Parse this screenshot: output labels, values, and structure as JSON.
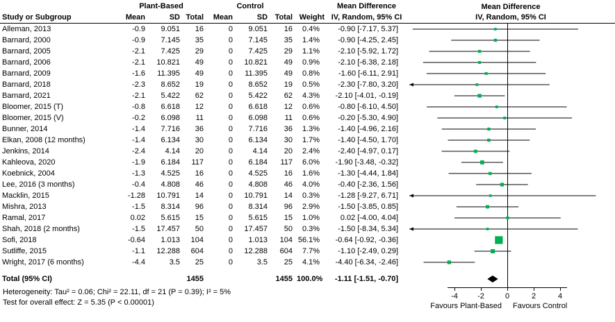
{
  "header": {
    "group1": "Plant-Based",
    "group2": "Control",
    "md": "Mean Difference",
    "study": "Study or Subgroup",
    "mean": "Mean",
    "sd": "SD",
    "total": "Total",
    "weight": "Weight",
    "ci": "IV, Random, 95% CI"
  },
  "footer": {
    "heterogeneity": "Heterogeneity: Tau² = 0.06; Chi² = 22.11, df = 21 (P = 0.39); I² = 5%",
    "overall": "Test for overall effect: Z = 5.35 (P < 0.00001)"
  },
  "chart_data": {
    "type": "forest",
    "effect_measure": "Mean Difference",
    "model": "IV, Random, 95% CI",
    "axis_ticks": [
      -4,
      -2,
      0,
      2,
      4
    ],
    "xlim": [
      -7.5,
      8
    ],
    "favours_left": "Favours Plant-Based",
    "favours_right": "Favours Control",
    "marker_color": "#00B050",
    "diamond_color": "#000000",
    "studies": [
      {
        "name": "Alleman, 2013",
        "mean": "-0.9",
        "sd": "9.051",
        "total": "16",
        "c_mean": "0",
        "c_sd": "9.051",
        "c_total": "16",
        "weight": "0.4%",
        "ci_text": "-0.90 [-7.17, 5.37]",
        "est": -0.9,
        "lo": -7.17,
        "hi": 5.37
      },
      {
        "name": "Barnard, 2000",
        "mean": "-0.9",
        "sd": "7.145",
        "total": "35",
        "c_mean": "0",
        "c_sd": "7.145",
        "c_total": "35",
        "weight": "1.4%",
        "ci_text": "-0.90 [-4.25, 2.45]",
        "est": -0.9,
        "lo": -4.25,
        "hi": 2.45
      },
      {
        "name": "Barnard, 2005",
        "mean": "-2.1",
        "sd": "7.425",
        "total": "29",
        "c_mean": "0",
        "c_sd": "7.425",
        "c_total": "29",
        "weight": "1.1%",
        "ci_text": "-2.10 [-5.92, 1.72]",
        "est": -2.1,
        "lo": -5.92,
        "hi": 1.72
      },
      {
        "name": "Barnard, 2006",
        "mean": "-2.1",
        "sd": "10.821",
        "total": "49",
        "c_mean": "0",
        "c_sd": "10.821",
        "c_total": "49",
        "weight": "0.9%",
        "ci_text": "-2.10 [-6.38, 2.18]",
        "est": -2.1,
        "lo": -6.38,
        "hi": 2.18
      },
      {
        "name": "Barnard, 2009",
        "mean": "-1.6",
        "sd": "11.395",
        "total": "49",
        "c_mean": "0",
        "c_sd": "11.395",
        "c_total": "49",
        "weight": "0.8%",
        "ci_text": "-1.60 [-6.11, 2.91]",
        "est": -1.6,
        "lo": -6.11,
        "hi": 2.91
      },
      {
        "name": "Barnard, 2018",
        "mean": "-2.3",
        "sd": "8.652",
        "total": "19",
        "c_mean": "0",
        "c_sd": "8.652",
        "c_total": "19",
        "weight": "0.5%",
        "ci_text": "-2.30 [-7.80, 3.20]",
        "est": -2.3,
        "lo": -7.8,
        "hi": 3.2
      },
      {
        "name": "Barnard, 2021",
        "mean": "-2.1",
        "sd": "5.422",
        "total": "62",
        "c_mean": "0",
        "c_sd": "5.422",
        "c_total": "62",
        "weight": "4.3%",
        "ci_text": "-2.10 [-4.01, -0.19]",
        "est": -2.1,
        "lo": -4.01,
        "hi": -0.19
      },
      {
        "name": "Bloomer, 2015 (T)",
        "mean": "-0.8",
        "sd": "6.618",
        "total": "12",
        "c_mean": "0",
        "c_sd": "6.618",
        "c_total": "12",
        "weight": "0.6%",
        "ci_text": "-0.80 [-6.10, 4.50]",
        "est": -0.8,
        "lo": -6.1,
        "hi": 4.5
      },
      {
        "name": "Bloomer, 2015 (V)",
        "mean": "-0.2",
        "sd": "6.098",
        "total": "11",
        "c_mean": "0",
        "c_sd": "6.098",
        "c_total": "11",
        "weight": "0.6%",
        "ci_text": "-0.20 [-5.30, 4.90]",
        "est": -0.2,
        "lo": -5.3,
        "hi": 4.9
      },
      {
        "name": "Bunner, 2014",
        "mean": "-1.4",
        "sd": "7.716",
        "total": "36",
        "c_mean": "0",
        "c_sd": "7.716",
        "c_total": "36",
        "weight": "1.3%",
        "ci_text": "-1.40 [-4.96, 2.16]",
        "est": -1.4,
        "lo": -4.96,
        "hi": 2.16
      },
      {
        "name": "Elkan, 2008 (12 months)",
        "mean": "-1.4",
        "sd": "6.134",
        "total": "30",
        "c_mean": "0",
        "c_sd": "6.134",
        "c_total": "30",
        "weight": "1.7%",
        "ci_text": "-1.40 [-4.50, 1.70]",
        "est": -1.4,
        "lo": -4.5,
        "hi": 1.7
      },
      {
        "name": "Jenkins, 2014",
        "mean": "-2.4",
        "sd": "4.14",
        "total": "20",
        "c_mean": "0",
        "c_sd": "4.14",
        "c_total": "20",
        "weight": "2.4%",
        "ci_text": "-2.40 [-4.97, 0.17]",
        "est": -2.4,
        "lo": -4.97,
        "hi": 0.17
      },
      {
        "name": "Kahleova, 2020",
        "mean": "-1.9",
        "sd": "6.184",
        "total": "117",
        "c_mean": "0",
        "c_sd": "6.184",
        "c_total": "117",
        "weight": "6.0%",
        "ci_text": "-1.90 [-3.48, -0.32]",
        "est": -1.9,
        "lo": -3.48,
        "hi": -0.32
      },
      {
        "name": "Koebnick, 2004",
        "mean": "-1.3",
        "sd": "4.525",
        "total": "16",
        "c_mean": "0",
        "c_sd": "4.525",
        "c_total": "16",
        "weight": "1.6%",
        "ci_text": "-1.30 [-4.44, 1.84]",
        "est": -1.3,
        "lo": -4.44,
        "hi": 1.84
      },
      {
        "name": "Lee, 2016 (3 months)",
        "mean": "-0.4",
        "sd": "4.808",
        "total": "46",
        "c_mean": "0",
        "c_sd": "4.808",
        "c_total": "46",
        "weight": "4.0%",
        "ci_text": "-0.40 [-2.36, 1.56]",
        "est": -0.4,
        "lo": -2.36,
        "hi": 1.56
      },
      {
        "name": "Macklin, 2015",
        "mean": "-1.28",
        "sd": "10.791",
        "total": "14",
        "c_mean": "0",
        "c_sd": "10.791",
        "c_total": "14",
        "weight": "0.3%",
        "ci_text": "-1.28 [-9.27, 6.71]",
        "est": -1.28,
        "lo": -9.27,
        "hi": 6.71
      },
      {
        "name": "Mishra, 2013",
        "mean": "-1.5",
        "sd": "8.314",
        "total": "96",
        "c_mean": "0",
        "c_sd": "8.314",
        "c_total": "96",
        "weight": "2.9%",
        "ci_text": "-1.50 [-3.85, 0.85]",
        "est": -1.5,
        "lo": -3.85,
        "hi": 0.85
      },
      {
        "name": "Ramal, 2017",
        "mean": "0.02",
        "sd": "5.615",
        "total": "15",
        "c_mean": "0",
        "c_sd": "5.615",
        "c_total": "15",
        "weight": "1.0%",
        "ci_text": "0.02 [-4.00, 4.04]",
        "est": 0.02,
        "lo": -4.0,
        "hi": 4.04
      },
      {
        "name": "Shah, 2018 (2 months)",
        "mean": "-1.5",
        "sd": "17.457",
        "total": "50",
        "c_mean": "0",
        "c_sd": "17.457",
        "c_total": "50",
        "weight": "0.3%",
        "ci_text": "-1.50 [-8.34, 5.34]",
        "est": -1.5,
        "lo": -8.34,
        "hi": 5.34
      },
      {
        "name": "Sofi, 2018",
        "mean": "-0.64",
        "sd": "1.013",
        "total": "104",
        "c_mean": "0",
        "c_sd": "1.013",
        "c_total": "104",
        "weight": "56.1%",
        "ci_text": "-0.64 [-0.92, -0.36]",
        "est": -0.64,
        "lo": -0.92,
        "hi": -0.36
      },
      {
        "name": "Sutliffe, 2015",
        "mean": "-1.1",
        "sd": "12.288",
        "total": "604",
        "c_mean": "0",
        "c_sd": "12.288",
        "c_total": "604",
        "weight": "7.7%",
        "ci_text": "-1.10 [-2.49, 0.29]",
        "est": -1.1,
        "lo": -2.49,
        "hi": 0.29
      },
      {
        "name": "Wright, 2017 (6 months)",
        "mean": "-4.4",
        "sd": "3.5",
        "total": "25",
        "c_mean": "0",
        "c_sd": "3.5",
        "c_total": "25",
        "weight": "4.1%",
        "ci_text": "-4.40 [-6.34, -2.46]",
        "est": -4.4,
        "lo": -6.34,
        "hi": -2.46
      }
    ],
    "total": {
      "label": "Total (95% CI)",
      "n1": "1455",
      "n2": "1455",
      "weight": "100.0%",
      "ci_text": "-1.11 [-1.51, -0.70]",
      "est": -1.11,
      "lo": -1.51,
      "hi": -0.7
    }
  }
}
